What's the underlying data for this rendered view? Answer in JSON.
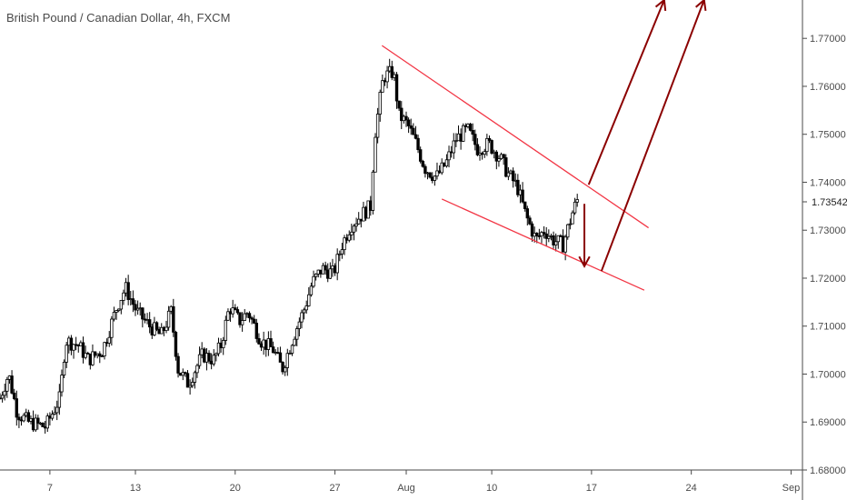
{
  "title": "British Pound / Canadian Dollar, 4h, FXCM",
  "chart_data": {
    "type": "candlestick",
    "symbol": "GBPCAD",
    "timeframe": "4h",
    "source": "FXCM",
    "ylim": [
      1.68,
      1.778
    ],
    "y_ticks": [
      "1.68000",
      "1.69000",
      "1.70000",
      "1.71000",
      "1.72000",
      "1.73000",
      "1.74000",
      "1.75000",
      "1.76000",
      "1.77000"
    ],
    "last_price": "1.73542",
    "x_ticks": [
      "7",
      "13",
      "20",
      "27",
      "Aug",
      "10",
      "17",
      "24",
      "Sep"
    ],
    "x_tick_day_index": [
      3.5,
      9.5,
      16.5,
      23.5,
      28.5,
      34.5,
      41.5,
      48.5,
      55.5
    ],
    "x_range_days": [
      0,
      56.3
    ],
    "close_path": [
      [
        0.0,
        1.695
      ],
      [
        0.6,
        1.7
      ],
      [
        1.2,
        1.692
      ],
      [
        2.0,
        1.69
      ],
      [
        3.2,
        1.689
      ],
      [
        4.2,
        1.695
      ],
      [
        4.6,
        1.707
      ],
      [
        5.5,
        1.706
      ],
      [
        6.2,
        1.703
      ],
      [
        7.2,
        1.705
      ],
      [
        8.2,
        1.714
      ],
      [
        8.8,
        1.718
      ],
      [
        9.6,
        1.713
      ],
      [
        10.5,
        1.71
      ],
      [
        11.3,
        1.708
      ],
      [
        12.0,
        1.713
      ],
      [
        12.5,
        1.701
      ],
      [
        13.2,
        1.698
      ],
      [
        14.2,
        1.704
      ],
      [
        15.0,
        1.703
      ],
      [
        15.5,
        1.706
      ],
      [
        16.1,
        1.714
      ],
      [
        16.8,
        1.711
      ],
      [
        17.4,
        1.713
      ],
      [
        18.3,
        1.707
      ],
      [
        19.2,
        1.705
      ],
      [
        19.8,
        1.701
      ],
      [
        20.6,
        1.708
      ],
      [
        21.4,
        1.714
      ],
      [
        21.9,
        1.719
      ],
      [
        22.6,
        1.722
      ],
      [
        23.4,
        1.721
      ],
      [
        24.0,
        1.727
      ],
      [
        24.6,
        1.731
      ],
      [
        25.3,
        1.733
      ],
      [
        26.0,
        1.735
      ],
      [
        26.3,
        1.75
      ],
      [
        26.9,
        1.762
      ],
      [
        27.6,
        1.763
      ],
      [
        28.0,
        1.754
      ],
      [
        28.6,
        1.752
      ],
      [
        29.2,
        1.748
      ],
      [
        29.8,
        1.743
      ],
      [
        30.6,
        1.741
      ],
      [
        31.3,
        1.744
      ],
      [
        32.0,
        1.749
      ],
      [
        32.8,
        1.751
      ],
      [
        33.5,
        1.747
      ],
      [
        34.3,
        1.748
      ],
      [
        35.1,
        1.745
      ],
      [
        35.6,
        1.742
      ],
      [
        36.3,
        1.739
      ],
      [
        36.9,
        1.733
      ],
      [
        37.6,
        1.728
      ],
      [
        38.2,
        1.73
      ],
      [
        38.8,
        1.728
      ],
      [
        39.5,
        1.727
      ],
      [
        40.2,
        1.734
      ],
      [
        40.6,
        1.737
      ]
    ],
    "channel_lines": [
      {
        "name": "upper",
        "from": [
          26.8,
          1.7685
        ],
        "to": [
          45.5,
          1.7305
        ]
      },
      {
        "name": "lower",
        "from": [
          31.0,
          1.7365
        ],
        "to": [
          45.2,
          1.7175
        ]
      }
    ],
    "arrows": [
      {
        "name": "down-arrow",
        "from": [
          41.0,
          1.7355
        ],
        "to": [
          41.0,
          1.7225
        ]
      },
      {
        "name": "up-arrow-1",
        "from": [
          41.3,
          1.7395
        ],
        "to": [
          46.6,
          1.778
        ]
      },
      {
        "name": "up-arrow-2",
        "from": [
          42.2,
          1.7215
        ],
        "to": [
          49.4,
          1.778
        ]
      }
    ],
    "colors": {
      "candle": "#000000",
      "channel": "#f23645",
      "arrow": "#8b0000",
      "axis": "#4a4a4a",
      "price_tag_border": "#b0b0b0"
    }
  }
}
